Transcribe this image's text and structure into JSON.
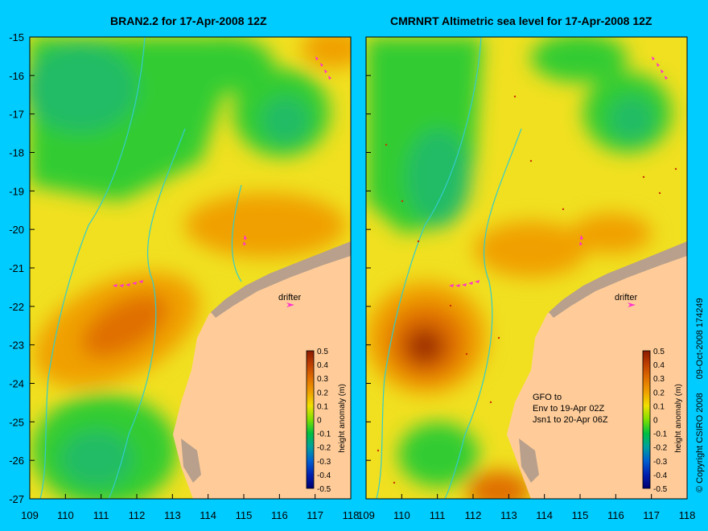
{
  "panels": [
    {
      "title": "BRAN2.2 for 17-Apr-2008 12Z",
      "labels": {
        "drifter": "drifter"
      },
      "colorbar_title": "height anomaly (m)"
    },
    {
      "title": "CMRNRT Altimetric sea level  for 17-Apr-2008 12Z",
      "labels": {
        "drifter": "drifter"
      },
      "colorbar_title": "height anomaly (m)",
      "satellite_note": [
        "GFO to",
        "Env to 19-Apr 02Z",
        "Jsn1 to 20-Apr 06Z"
      ]
    }
  ],
  "axes": {
    "x_ticks": [
      "109",
      "110",
      "111",
      "112",
      "113",
      "114",
      "115",
      "116",
      "117",
      "118"
    ],
    "x_ticks_right": [
      "109",
      "110",
      "111",
      "112",
      "113",
      "114",
      "115",
      "116",
      "117",
      "118"
    ],
    "y_ticks": [
      "-15",
      "-16",
      "-17",
      "-18",
      "-19",
      "-20",
      "-21",
      "-22",
      "-23",
      "-24",
      "-25",
      "-26",
      "-27"
    ],
    "lon_range": [
      109,
      118
    ],
    "lat_range": [
      -27,
      -15
    ]
  },
  "colorbar": {
    "ticks": [
      "0.5",
      "0.4",
      "0.3",
      "0.2",
      "0.1",
      "0",
      "-0.1",
      "-0.2",
      "-0.3",
      "-0.4",
      "-0.5"
    ],
    "range": [
      -0.5,
      0.5
    ]
  },
  "colors": {
    "background": "#00ccff",
    "land": "#ffcc99",
    "coast_mud": "#b8a08c",
    "bathymetry_contour": "#33cccc",
    "drifter_track": "#ff33cc"
  },
  "footer": {
    "copyright": "© Copyright CSIRO 2008",
    "timestamp": "09-Oct-2008 174249"
  }
}
